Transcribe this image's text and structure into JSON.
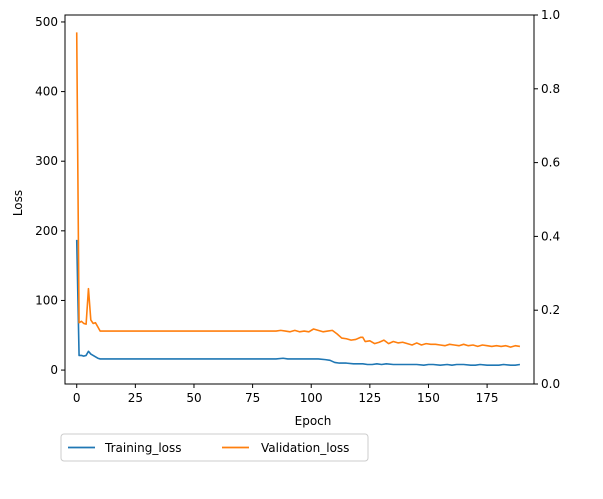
{
  "chart_data": {
    "type": "line",
    "xlabel": "Epoch",
    "ylabel": "Loss",
    "xlim": [
      -5,
      195
    ],
    "ylim": [
      -20,
      510
    ],
    "y2lim": [
      0,
      1
    ],
    "x_ticks": [
      "0",
      "25",
      "50",
      "75",
      "100",
      "125",
      "150",
      "175"
    ],
    "y_ticks": [
      "0",
      "100",
      "200",
      "300",
      "400",
      "500"
    ],
    "y2_ticks": [
      "0.0",
      "0.2",
      "0.4",
      "0.6",
      "0.8",
      "1.0"
    ],
    "grid": false,
    "legend_position": "bottom-left, below the plot",
    "series": [
      {
        "name": "Training_loss",
        "color": "#1f77b4",
        "points": [
          [
            0,
            187
          ],
          [
            1,
            21
          ],
          [
            2,
            21
          ],
          [
            3,
            20
          ],
          [
            4,
            21
          ],
          [
            5,
            27
          ],
          [
            6,
            23
          ],
          [
            7,
            21
          ],
          [
            8,
            19
          ],
          [
            9,
            17
          ],
          [
            10,
            16
          ],
          [
            12,
            16
          ],
          [
            15,
            16
          ],
          [
            20,
            16
          ],
          [
            30,
            16
          ],
          [
            40,
            16
          ],
          [
            50,
            16
          ],
          [
            60,
            16
          ],
          [
            70,
            16
          ],
          [
            80,
            16
          ],
          [
            85,
            16
          ],
          [
            88,
            17
          ],
          [
            90,
            16
          ],
          [
            95,
            16
          ],
          [
            100,
            16
          ],
          [
            103,
            16
          ],
          [
            106,
            15
          ],
          [
            108,
            14
          ],
          [
            110,
            11
          ],
          [
            112,
            10
          ],
          [
            115,
            10
          ],
          [
            118,
            9
          ],
          [
            120,
            9
          ],
          [
            122,
            9
          ],
          [
            124,
            8
          ],
          [
            126,
            8
          ],
          [
            128,
            9
          ],
          [
            130,
            8
          ],
          [
            132,
            9
          ],
          [
            135,
            8
          ],
          [
            138,
            8
          ],
          [
            140,
            8
          ],
          [
            142,
            8
          ],
          [
            145,
            8
          ],
          [
            148,
            7
          ],
          [
            150,
            8
          ],
          [
            152,
            8
          ],
          [
            155,
            7
          ],
          [
            158,
            8
          ],
          [
            160,
            7
          ],
          [
            162,
            8
          ],
          [
            165,
            8
          ],
          [
            168,
            7
          ],
          [
            170,
            7
          ],
          [
            172,
            8
          ],
          [
            175,
            7
          ],
          [
            178,
            7
          ],
          [
            180,
            7
          ],
          [
            182,
            8
          ],
          [
            185,
            7
          ],
          [
            187,
            7
          ],
          [
            189,
            8
          ]
        ]
      },
      {
        "name": "Validation_loss",
        "color": "#ff7f0e",
        "points": [
          [
            0,
            485
          ],
          [
            1,
            68
          ],
          [
            2,
            70
          ],
          [
            3,
            67
          ],
          [
            4,
            66
          ],
          [
            5,
            117
          ],
          [
            6,
            72
          ],
          [
            7,
            67
          ],
          [
            8,
            68
          ],
          [
            9,
            62
          ],
          [
            10,
            56
          ],
          [
            12,
            56
          ],
          [
            15,
            56
          ],
          [
            20,
            56
          ],
          [
            30,
            56
          ],
          [
            40,
            56
          ],
          [
            50,
            56
          ],
          [
            60,
            56
          ],
          [
            70,
            56
          ],
          [
            80,
            56
          ],
          [
            85,
            56
          ],
          [
            87,
            57
          ],
          [
            89,
            56
          ],
          [
            91,
            55
          ],
          [
            93,
            57
          ],
          [
            95,
            55
          ],
          [
            97,
            56
          ],
          [
            99,
            55
          ],
          [
            101,
            59
          ],
          [
            103,
            57
          ],
          [
            105,
            55
          ],
          [
            107,
            56
          ],
          [
            109,
            57
          ],
          [
            111,
            52
          ],
          [
            113,
            46
          ],
          [
            115,
            45
          ],
          [
            117,
            43
          ],
          [
            119,
            44
          ],
          [
            121,
            47
          ],
          [
            122,
            47
          ],
          [
            123,
            41
          ],
          [
            125,
            42
          ],
          [
            127,
            38
          ],
          [
            129,
            40
          ],
          [
            131,
            43
          ],
          [
            133,
            38
          ],
          [
            135,
            41
          ],
          [
            137,
            39
          ],
          [
            139,
            40
          ],
          [
            141,
            38
          ],
          [
            143,
            36
          ],
          [
            145,
            39
          ],
          [
            147,
            36
          ],
          [
            149,
            38
          ],
          [
            151,
            37
          ],
          [
            153,
            37
          ],
          [
            155,
            36
          ],
          [
            157,
            35
          ],
          [
            159,
            37
          ],
          [
            161,
            36
          ],
          [
            163,
            35
          ],
          [
            165,
            37
          ],
          [
            167,
            35
          ],
          [
            169,
            36
          ],
          [
            171,
            34
          ],
          [
            173,
            36
          ],
          [
            175,
            35
          ],
          [
            177,
            34
          ],
          [
            179,
            35
          ],
          [
            181,
            34
          ],
          [
            183,
            35
          ],
          [
            185,
            33
          ],
          [
            187,
            35
          ],
          [
            189,
            34
          ]
        ]
      }
    ]
  }
}
